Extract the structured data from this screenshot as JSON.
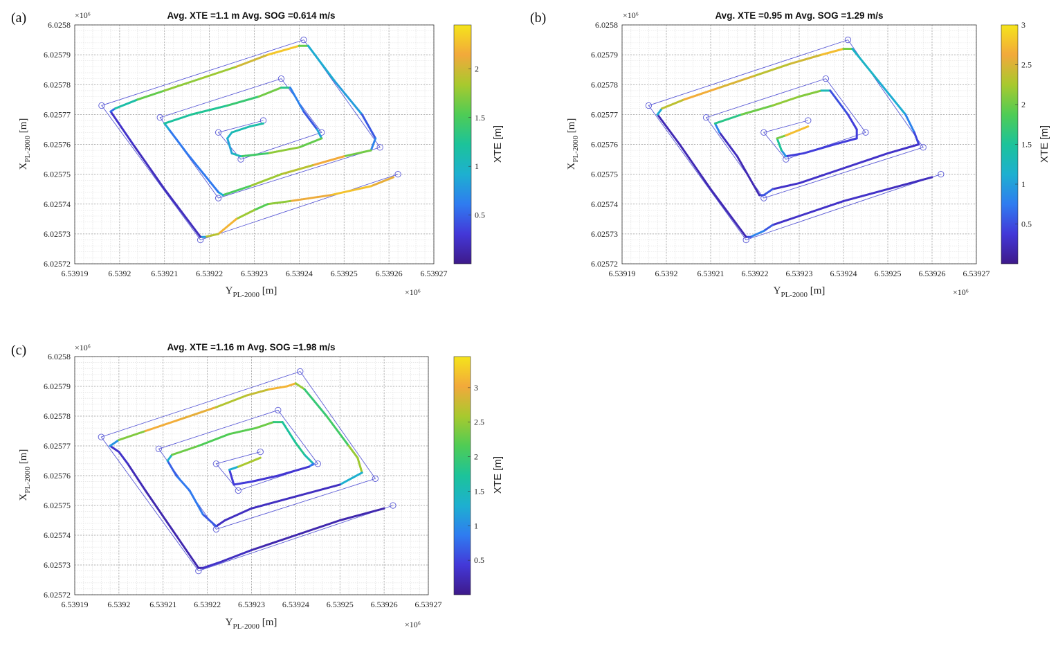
{
  "figure": {
    "palette": [
      "#3e1a8a",
      "#4338d8",
      "#2f7cf0",
      "#1db0d0",
      "#1cc39a",
      "#4fcc55",
      "#a8c92e",
      "#f2a93b",
      "#f5e41b"
    ]
  },
  "chart_data": [
    {
      "id": "a",
      "type": "line",
      "panel_label": "(a)",
      "title": "Avg. XTE =1.1 m Avg. SOG =0.614 m/s",
      "xlabel_main": "Y",
      "xlabel_sub": "PL-2000",
      "xlabel_unit": " [m]",
      "ylabel_main": "X",
      "ylabel_sub": "PL-2000",
      "ylabel_unit": " [m]",
      "x_exponent": "×10⁶",
      "y_exponent": "×10⁶",
      "xlim": [
        6.53919,
        6.53927
      ],
      "ylim": [
        6.02572,
        6.0258
      ],
      "xticks": [
        "6.53919",
        "6.5392",
        "6.53921",
        "6.53922",
        "6.53923",
        "6.53924",
        "6.53925",
        "6.53926",
        "6.53927"
      ],
      "yticks": [
        "6.02572",
        "6.02573",
        "6.02574",
        "6.02575",
        "6.02576",
        "6.02577",
        "6.02578",
        "6.02579",
        "6.0258"
      ],
      "colorbar_label": "XTE [m]",
      "colorbar_range": [
        0,
        2.45
      ],
      "colorbar_ticks": [
        "0.5",
        "1",
        "1.5",
        "2"
      ],
      "waypoints": [
        [
          6.539262,
          6.02575
        ],
        [
          6.539218,
          6.025728
        ],
        [
          6.539196,
          6.025773
        ],
        [
          6.539241,
          6.025795
        ],
        [
          6.539258,
          6.025759
        ],
        [
          6.539222,
          6.025742
        ],
        [
          6.539209,
          6.025769
        ],
        [
          6.539236,
          6.025782
        ],
        [
          6.539245,
          6.025764
        ],
        [
          6.539227,
          6.025755
        ],
        [
          6.539222,
          6.025764
        ],
        [
          6.539232,
          6.025768
        ]
      ],
      "track": [
        [
          6.539261,
          6.025749,
          1.9
        ],
        [
          6.539256,
          6.025746,
          2.3
        ],
        [
          6.539247,
          6.025743,
          2.25
        ],
        [
          6.539238,
          6.025741,
          2.0
        ],
        [
          6.539233,
          6.02574,
          1.5
        ],
        [
          6.53923,
          6.025738,
          1.6
        ],
        [
          6.539226,
          6.025735,
          2.0
        ],
        [
          6.539222,
          6.02573,
          2.4
        ],
        [
          6.539219,
          6.025729,
          1.4
        ],
        [
          6.539218,
          6.025729,
          0.2
        ],
        [
          6.53921,
          6.025745,
          0.2
        ],
        [
          6.539203,
          6.02576,
          0.2
        ],
        [
          6.539198,
          6.025771,
          0.3
        ],
        [
          6.539199,
          6.025772,
          0.8
        ],
        [
          6.539204,
          6.025775,
          1.5
        ],
        [
          6.53921,
          6.025778,
          1.7
        ],
        [
          6.539218,
          6.025782,
          1.8
        ],
        [
          6.539226,
          6.025786,
          1.8
        ],
        [
          6.539233,
          6.02579,
          2.2
        ],
        [
          6.53924,
          6.025793,
          2.4
        ],
        [
          6.539242,
          6.025793,
          0.8
        ],
        [
          6.539248,
          6.025781,
          1.0
        ],
        [
          6.539254,
          6.02577,
          0.6
        ],
        [
          6.539257,
          6.025762,
          0.3
        ],
        [
          6.539256,
          6.025758,
          1.0
        ],
        [
          6.53925,
          6.025756,
          2.3
        ],
        [
          6.539243,
          6.025753,
          2.0
        ],
        [
          6.539236,
          6.02575,
          1.8
        ],
        [
          6.539229,
          6.025746,
          1.8
        ],
        [
          6.539223,
          6.025743,
          1.2
        ],
        [
          6.539222,
          6.025744,
          0.6
        ],
        [
          6.539215,
          6.025757,
          0.6
        ],
        [
          6.539211,
          6.025765,
          0.6
        ],
        [
          6.53921,
          6.025767,
          1.2
        ],
        [
          6.539216,
          6.02577,
          1.2
        ],
        [
          6.539224,
          6.025773,
          1.3
        ],
        [
          6.539231,
          6.025776,
          1.5
        ],
        [
          6.539236,
          6.025779,
          1.8
        ],
        [
          6.539238,
          6.025779,
          0.8
        ],
        [
          6.539241,
          6.025771,
          0.5
        ],
        [
          6.539244,
          6.025765,
          0.4
        ],
        [
          6.539245,
          6.025762,
          1.3
        ],
        [
          6.53924,
          6.025759,
          1.9
        ],
        [
          6.539233,
          6.025757,
          1.6
        ],
        [
          6.539227,
          6.025756,
          1.3
        ],
        [
          6.539225,
          6.025757,
          0.8
        ],
        [
          6.539224,
          6.025762,
          0.9
        ],
        [
          6.539225,
          6.025764,
          1.0
        ],
        [
          6.539229,
          6.025766,
          1.2
        ],
        [
          6.539232,
          6.025767,
          1.1
        ]
      ]
    },
    {
      "id": "b",
      "type": "line",
      "panel_label": "(b)",
      "title": "Avg. XTE =0.95 m Avg. SOG =1.29 m/s",
      "xlabel_main": "Y",
      "xlabel_sub": "PL-2000",
      "xlabel_unit": " [m]",
      "ylabel_main": "X",
      "ylabel_sub": "PL-2000",
      "ylabel_unit": " [m]",
      "x_exponent": "×10⁶",
      "y_exponent": "×10⁶",
      "xlim": [
        6.53919,
        6.53927
      ],
      "ylim": [
        6.02572,
        6.0258
      ],
      "xticks": [
        "6.53919",
        "6.5392",
        "6.53921",
        "6.53922",
        "6.53923",
        "6.53924",
        "6.53925",
        "6.53926",
        "6.53927"
      ],
      "yticks": [
        "6.02572",
        "6.02573",
        "6.02574",
        "6.02575",
        "6.02576",
        "6.02577",
        "6.02578",
        "6.02579",
        "6.0258"
      ],
      "colorbar_label": "XTE [m]",
      "colorbar_range": [
        0,
        3.0
      ],
      "colorbar_ticks": [
        "0.5",
        "1",
        "1.5",
        "2",
        "2.5",
        "3"
      ],
      "waypoints": [
        [
          6.539262,
          6.02575
        ],
        [
          6.539218,
          6.025728
        ],
        [
          6.539196,
          6.025773
        ],
        [
          6.539241,
          6.025795
        ],
        [
          6.539258,
          6.025759
        ],
        [
          6.539222,
          6.025742
        ],
        [
          6.539209,
          6.025769
        ],
        [
          6.539236,
          6.025782
        ],
        [
          6.539245,
          6.025764
        ],
        [
          6.539227,
          6.025755
        ],
        [
          6.539222,
          6.025764
        ],
        [
          6.539232,
          6.025768
        ]
      ],
      "track": [
        [
          6.53926,
          6.025749,
          0.2
        ],
        [
          6.53925,
          6.025745,
          0.3
        ],
        [
          6.53924,
          6.025741,
          0.3
        ],
        [
          6.53923,
          6.025736,
          0.3
        ],
        [
          6.539224,
          6.025733,
          0.3
        ],
        [
          6.539222,
          6.025731,
          0.8
        ],
        [
          6.539219,
          6.025729,
          0.8
        ],
        [
          6.539218,
          6.025729,
          0.2
        ],
        [
          6.53921,
          6.025745,
          0.2
        ],
        [
          6.539203,
          6.02576,
          0.2
        ],
        [
          6.539198,
          6.02577,
          0.2
        ],
        [
          6.539199,
          6.025772,
          2.0
        ],
        [
          6.539204,
          6.025775,
          2.7
        ],
        [
          6.539212,
          6.025779,
          2.6
        ],
        [
          6.53922,
          6.025783,
          2.4
        ],
        [
          6.539228,
          6.025787,
          2.3
        ],
        [
          6.539235,
          6.02579,
          2.6
        ],
        [
          6.53924,
          6.025792,
          2.9
        ],
        [
          6.539242,
          6.025792,
          1.2
        ],
        [
          6.539248,
          6.025781,
          1.2
        ],
        [
          6.539254,
          6.02577,
          1.0
        ],
        [
          6.539256,
          6.025764,
          0.6
        ],
        [
          6.539257,
          6.02576,
          0.3
        ],
        [
          6.53925,
          6.025757,
          0.3
        ],
        [
          6.53924,
          6.025752,
          0.3
        ],
        [
          6.53923,
          6.025747,
          0.3
        ],
        [
          6.539224,
          6.025745,
          0.3
        ],
        [
          6.539222,
          6.025743,
          0.8
        ],
        [
          6.539221,
          6.025743,
          0.2
        ],
        [
          6.539216,
          6.025756,
          0.2
        ],
        [
          6.539212,
          6.025764,
          0.3
        ],
        [
          6.539211,
          6.025767,
          1.3
        ],
        [
          6.539217,
          6.02577,
          1.9
        ],
        [
          6.539224,
          6.025773,
          2.1
        ],
        [
          6.53923,
          6.025776,
          2.2
        ],
        [
          6.539235,
          6.025778,
          2.0
        ],
        [
          6.539237,
          6.025778,
          0.6
        ],
        [
          6.539241,
          6.02577,
          0.4
        ],
        [
          6.539243,
          6.025765,
          0.4
        ],
        [
          6.539243,
          6.025762,
          0.4
        ],
        [
          6.539238,
          6.02576,
          0.4
        ],
        [
          6.539231,
          6.025757,
          0.4
        ],
        [
          6.539227,
          6.025756,
          0.4
        ],
        [
          6.539226,
          6.025758,
          1.4
        ],
        [
          6.539225,
          6.025762,
          1.6
        ],
        [
          6.539227,
          6.025763,
          2.5
        ],
        [
          6.539232,
          6.025766,
          3.0
        ]
      ]
    },
    {
      "id": "c",
      "type": "line",
      "panel_label": "(c)",
      "title": "Avg. XTE =1.16 m Avg. SOG =1.98 m/s",
      "xlabel_main": "Y",
      "xlabel_sub": "PL-2000",
      "xlabel_unit": " [m]",
      "ylabel_main": "X",
      "ylabel_sub": "PL-2000",
      "ylabel_unit": " [m]",
      "x_exponent": "×10⁶",
      "y_exponent": "×10⁶",
      "xlim": [
        6.53919,
        6.53927
      ],
      "ylim": [
        6.02572,
        6.0258
      ],
      "xticks": [
        "6.53919",
        "6.5392",
        "6.53921",
        "6.53922",
        "6.53923",
        "6.53924",
        "6.53925",
        "6.53926",
        "6.53927"
      ],
      "yticks": [
        "6.02572",
        "6.02573",
        "6.02574",
        "6.02575",
        "6.02576",
        "6.02577",
        "6.02578",
        "6.02579",
        "6.0258"
      ],
      "colorbar_label": "XTE [m]",
      "colorbar_range": [
        0,
        3.45
      ],
      "colorbar_ticks": [
        "0.5",
        "1",
        "1.5",
        "2",
        "2.5",
        "3"
      ],
      "waypoints": [
        [
          6.539262,
          6.02575
        ],
        [
          6.539218,
          6.025728
        ],
        [
          6.539196,
          6.025773
        ],
        [
          6.539241,
          6.025795
        ],
        [
          6.539258,
          6.025759
        ],
        [
          6.539222,
          6.025742
        ],
        [
          6.539209,
          6.025769
        ],
        [
          6.539236,
          6.025782
        ],
        [
          6.539245,
          6.025764
        ],
        [
          6.539227,
          6.025755
        ],
        [
          6.539222,
          6.025764
        ],
        [
          6.539232,
          6.025768
        ]
      ],
      "track": [
        [
          6.53926,
          6.025749,
          0.2
        ],
        [
          6.53925,
          6.025745,
          0.2
        ],
        [
          6.53924,
          6.02574,
          0.2
        ],
        [
          6.53923,
          6.025735,
          0.2
        ],
        [
          6.539223,
          6.025731,
          0.4
        ],
        [
          6.539219,
          6.025729,
          0.3
        ],
        [
          6.539218,
          6.025729,
          0.2
        ],
        [
          6.539212,
          6.025742,
          0.2
        ],
        [
          6.539206,
          6.025755,
          0.2
        ],
        [
          6.539202,
          6.025764,
          0.3
        ],
        [
          6.5392,
          6.025768,
          0.4
        ],
        [
          6.539198,
          6.02577,
          0.3
        ],
        [
          6.5392,
          6.025772,
          1.8
        ],
        [
          6.539206,
          6.025775,
          3.0
        ],
        [
          6.539214,
          6.025779,
          3.1
        ],
        [
          6.539222,
          6.025783,
          2.8
        ],
        [
          6.539229,
          6.025787,
          2.5
        ],
        [
          6.539234,
          6.025789,
          3.0
        ],
        [
          6.539238,
          6.02579,
          3.2
        ],
        [
          6.53924,
          6.025791,
          3.0
        ],
        [
          6.539242,
          6.025789,
          2.0
        ],
        [
          6.539247,
          6.02578,
          1.9
        ],
        [
          6.539252,
          6.02577,
          2.2
        ],
        [
          6.539254,
          6.025766,
          2.8
        ],
        [
          6.539255,
          6.025761,
          2.3
        ],
        [
          6.53925,
          6.025757,
          0.3
        ],
        [
          6.53924,
          6.025753,
          0.3
        ],
        [
          6.53923,
          6.025749,
          0.3
        ],
        [
          6.539224,
          6.025745,
          0.3
        ],
        [
          6.539222,
          6.025743,
          0.3
        ],
        [
          6.539219,
          6.025747,
          1.0
        ],
        [
          6.539216,
          6.025755,
          0.7
        ],
        [
          6.539213,
          6.02576,
          1.0
        ],
        [
          6.539211,
          6.025765,
          0.4
        ],
        [
          6.539212,
          6.025767,
          2.3
        ],
        [
          6.539218,
          6.02577,
          2.3
        ],
        [
          6.539225,
          6.025774,
          2.0
        ],
        [
          6.539231,
          6.025776,
          2.4
        ],
        [
          6.539235,
          6.025778,
          2.2
        ],
        [
          6.539237,
          6.025778,
          1.6
        ],
        [
          6.53924,
          6.025771,
          1.8
        ],
        [
          6.539242,
          6.025767,
          1.8
        ],
        [
          6.539244,
          6.025764,
          1.3
        ],
        [
          6.539243,
          6.025763,
          0.4
        ],
        [
          6.539236,
          6.02576,
          0.4
        ],
        [
          6.53923,
          6.025758,
          0.4
        ],
        [
          6.539226,
          6.025757,
          0.5
        ],
        [
          6.539225,
          6.025762,
          0.4
        ],
        [
          6.539227,
          6.025763,
          2.2
        ],
        [
          6.539232,
          6.025766,
          3.0
        ]
      ]
    }
  ]
}
